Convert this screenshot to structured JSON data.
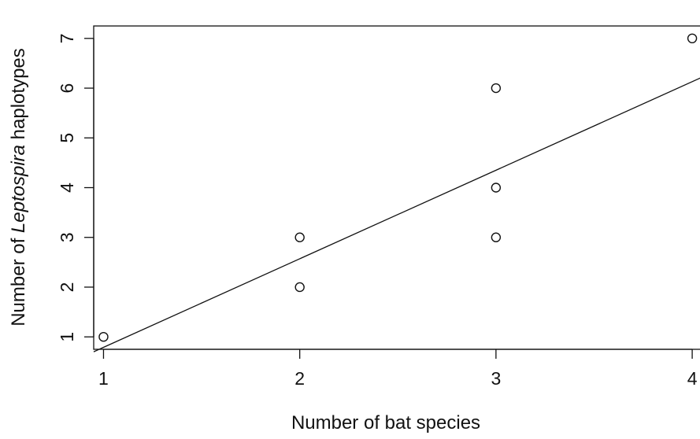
{
  "chart_data": {
    "type": "scatter",
    "title": "",
    "xlabel": "Number of bat species",
    "ylabel_parts": {
      "prefix": "Number of ",
      "italic": "Leptospira",
      "suffix": " haplotypes"
    },
    "xlim": [
      0.95,
      4.12
    ],
    "ylim": [
      0.75,
      7.25
    ],
    "x_ticks": [
      1,
      2,
      3,
      4
    ],
    "y_ticks": [
      1,
      2,
      3,
      4,
      5,
      6,
      7
    ],
    "grid": false,
    "series": [
      {
        "points": [
          {
            "x": 1,
            "y": 1
          },
          {
            "x": 2,
            "y": 2
          },
          {
            "x": 2,
            "y": 3
          },
          {
            "x": 3,
            "y": 3
          },
          {
            "x": 3,
            "y": 4
          },
          {
            "x": 3,
            "y": 6
          },
          {
            "x": 4,
            "y": 7
          }
        ]
      }
    ],
    "fit_line": {
      "slope": 1.78,
      "intercept": -0.99
    },
    "colors": {
      "axis": "#111111",
      "marker_stroke": "#111111",
      "line": "#111111"
    }
  }
}
